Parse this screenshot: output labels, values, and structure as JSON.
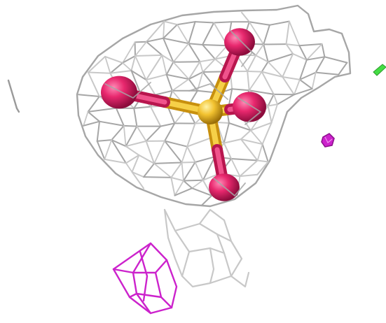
{
  "scene": {
    "background": "#ffffff",
    "colors": {
      "density_mesh": "#a6a6a6",
      "density_mesh_light": "#c8c8c8",
      "negative_difference_mesh": "#cc22cc",
      "positive_difference_mesh": "#44dd44",
      "sulfur": "#f2c230",
      "oxygen": "#e8286e"
    },
    "molecule": {
      "name": "sulfate",
      "atoms": [
        {
          "element": "S",
          "color_key": "sulfur"
        },
        {
          "element": "O",
          "color_key": "oxygen"
        },
        {
          "element": "O",
          "color_key": "oxygen"
        },
        {
          "element": "O",
          "color_key": "oxygen"
        },
        {
          "element": "O",
          "color_key": "oxygen"
        }
      ]
    },
    "icons": {
      "density_mesh": "electron-density-mesh",
      "difference_mesh": "difference-density-mesh"
    }
  }
}
